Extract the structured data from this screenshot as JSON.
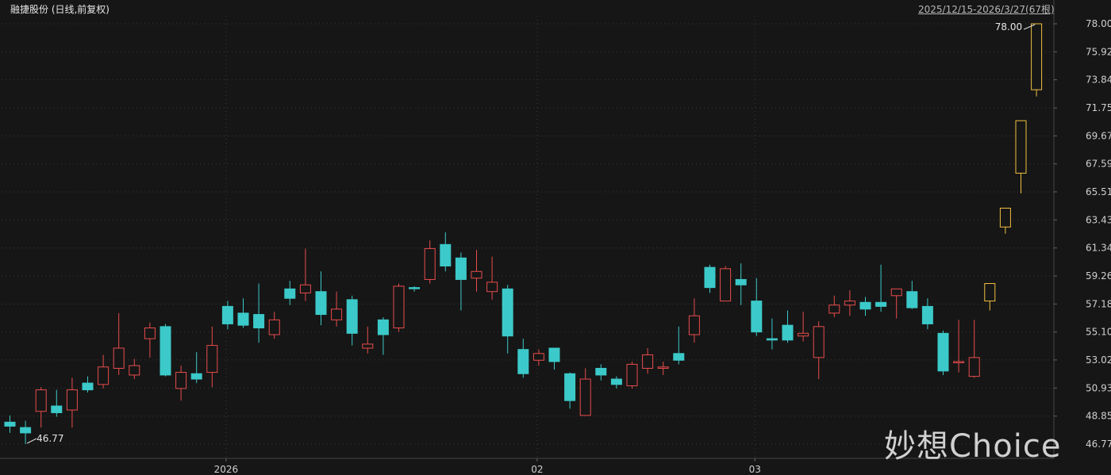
{
  "header": {
    "title": "融捷股份 (日线,前复权)",
    "range": "2025/12/15-2026/3/27(67根)"
  },
  "watermark": "妙想Choice",
  "colors": {
    "up": "#e84c4c",
    "down": "#3cc9c9",
    "highlight": "#f0c040",
    "grid": "#3a3a3a",
    "text": "#cfcfcf"
  },
  "chart_data": {
    "type": "candlestick",
    "ylim": [
      46.77,
      78.0
    ],
    "y_ticks": [
      "78.00",
      "75.92",
      "73.84",
      "71.75",
      "69.67",
      "67.59",
      "65.51",
      "63.43",
      "61.34",
      "59.26",
      "57.18",
      "55.10",
      "53.02",
      "50.93",
      "48.85",
      "46.77"
    ],
    "x_labels": [
      {
        "label": "2026",
        "index": 14
      },
      {
        "label": "02",
        "index": 34
      },
      {
        "label": "03",
        "index": 48
      }
    ],
    "annotations": [
      {
        "text": "46.77",
        "index": 1,
        "value": 46.77
      },
      {
        "text": "78.00",
        "index": 66,
        "value": 78.0
      }
    ],
    "candles": [
      {
        "o": 48.4,
        "h": 48.9,
        "l": 47.6,
        "c": 48.1,
        "s": "down"
      },
      {
        "o": 48.0,
        "h": 48.5,
        "l": 46.77,
        "c": 47.6,
        "s": "down"
      },
      {
        "o": 49.2,
        "h": 51.0,
        "l": 48.0,
        "c": 50.8,
        "s": "up"
      },
      {
        "o": 49.6,
        "h": 50.8,
        "l": 48.8,
        "c": 49.1,
        "s": "down"
      },
      {
        "o": 49.3,
        "h": 51.7,
        "l": 48.0,
        "c": 50.8,
        "s": "up"
      },
      {
        "o": 51.3,
        "h": 51.8,
        "l": 50.6,
        "c": 50.8,
        "s": "down"
      },
      {
        "o": 51.2,
        "h": 53.4,
        "l": 50.9,
        "c": 52.5,
        "s": "up"
      },
      {
        "o": 52.4,
        "h": 56.5,
        "l": 51.9,
        "c": 53.9,
        "s": "up"
      },
      {
        "o": 52.6,
        "h": 53.1,
        "l": 51.6,
        "c": 51.9,
        "s": "up"
      },
      {
        "o": 54.6,
        "h": 55.8,
        "l": 53.2,
        "c": 55.4,
        "s": "up"
      },
      {
        "o": 55.5,
        "h": 55.7,
        "l": 51.8,
        "c": 51.9,
        "s": "down"
      },
      {
        "o": 50.9,
        "h": 52.6,
        "l": 50.0,
        "c": 52.1,
        "s": "up"
      },
      {
        "o": 52.0,
        "h": 53.6,
        "l": 51.3,
        "c": 51.6,
        "s": "down"
      },
      {
        "o": 52.1,
        "h": 55.5,
        "l": 51.0,
        "c": 54.1,
        "s": "up"
      },
      {
        "o": 57.0,
        "h": 57.4,
        "l": 55.3,
        "c": 55.7,
        "s": "down"
      },
      {
        "o": 56.5,
        "h": 57.6,
        "l": 55.4,
        "c": 55.6,
        "s": "down"
      },
      {
        "o": 56.4,
        "h": 58.7,
        "l": 54.3,
        "c": 55.4,
        "s": "down"
      },
      {
        "o": 54.9,
        "h": 56.6,
        "l": 54.6,
        "c": 56.0,
        "s": "up"
      },
      {
        "o": 58.3,
        "h": 58.9,
        "l": 57.1,
        "c": 57.6,
        "s": "down"
      },
      {
        "o": 58.0,
        "h": 61.3,
        "l": 57.4,
        "c": 58.6,
        "s": "up"
      },
      {
        "o": 58.1,
        "h": 59.6,
        "l": 55.6,
        "c": 56.4,
        "s": "down"
      },
      {
        "o": 56.0,
        "h": 58.1,
        "l": 55.5,
        "c": 56.8,
        "s": "up"
      },
      {
        "o": 57.5,
        "h": 57.8,
        "l": 54.1,
        "c": 55.0,
        "s": "down"
      },
      {
        "o": 53.9,
        "h": 55.5,
        "l": 53.5,
        "c": 54.2,
        "s": "up"
      },
      {
        "o": 56.0,
        "h": 56.2,
        "l": 53.4,
        "c": 54.9,
        "s": "down"
      },
      {
        "o": 55.4,
        "h": 58.7,
        "l": 55.1,
        "c": 58.5,
        "s": "up"
      },
      {
        "o": 58.4,
        "h": 58.5,
        "l": 58.1,
        "c": 58.4,
        "s": "down"
      },
      {
        "o": 59.0,
        "h": 61.9,
        "l": 58.7,
        "c": 61.3,
        "s": "up"
      },
      {
        "o": 61.6,
        "h": 62.5,
        "l": 59.6,
        "c": 60.0,
        "s": "down"
      },
      {
        "o": 60.6,
        "h": 61.0,
        "l": 56.7,
        "c": 59.0,
        "s": "down"
      },
      {
        "o": 59.1,
        "h": 61.2,
        "l": 58.1,
        "c": 59.6,
        "s": "up"
      },
      {
        "o": 58.1,
        "h": 60.7,
        "l": 57.5,
        "c": 58.8,
        "s": "up"
      },
      {
        "o": 58.3,
        "h": 58.6,
        "l": 53.5,
        "c": 54.8,
        "s": "down"
      },
      {
        "o": 53.8,
        "h": 54.6,
        "l": 51.7,
        "c": 52.0,
        "s": "down"
      },
      {
        "o": 53.0,
        "h": 53.8,
        "l": 52.6,
        "c": 53.5,
        "s": "up"
      },
      {
        "o": 53.9,
        "h": 53.9,
        "l": 52.3,
        "c": 52.9,
        "s": "down"
      },
      {
        "o": 52.0,
        "h": 52.1,
        "l": 49.4,
        "c": 50.0,
        "s": "down"
      },
      {
        "o": 48.9,
        "h": 52.4,
        "l": 48.9,
        "c": 51.6,
        "s": "up"
      },
      {
        "o": 52.4,
        "h": 52.7,
        "l": 51.5,
        "c": 51.9,
        "s": "down"
      },
      {
        "o": 51.6,
        "h": 51.8,
        "l": 50.9,
        "c": 51.2,
        "s": "down"
      },
      {
        "o": 51.1,
        "h": 52.9,
        "l": 50.9,
        "c": 52.7,
        "s": "up"
      },
      {
        "o": 52.4,
        "h": 53.9,
        "l": 52.0,
        "c": 53.4,
        "s": "up"
      },
      {
        "o": 52.4,
        "h": 52.9,
        "l": 51.9,
        "c": 52.5,
        "s": "up"
      },
      {
        "o": 53.0,
        "h": 55.5,
        "l": 52.7,
        "c": 53.5,
        "s": "down"
      },
      {
        "o": 54.9,
        "h": 57.6,
        "l": 54.3,
        "c": 56.3,
        "s": "up"
      },
      {
        "o": 59.9,
        "h": 60.1,
        "l": 58.0,
        "c": 58.4,
        "s": "down"
      },
      {
        "o": 57.4,
        "h": 60.0,
        "l": 57.4,
        "c": 59.8,
        "s": "up"
      },
      {
        "o": 59.0,
        "h": 60.2,
        "l": 57.1,
        "c": 58.6,
        "s": "down"
      },
      {
        "o": 57.4,
        "h": 59.1,
        "l": 54.8,
        "c": 55.1,
        "s": "down"
      },
      {
        "o": 54.5,
        "h": 56.1,
        "l": 53.8,
        "c": 54.6,
        "s": "down"
      },
      {
        "o": 55.6,
        "h": 56.7,
        "l": 54.3,
        "c": 54.5,
        "s": "down"
      },
      {
        "o": 54.8,
        "h": 56.6,
        "l": 54.4,
        "c": 55.0,
        "s": "up"
      },
      {
        "o": 53.2,
        "h": 55.9,
        "l": 51.6,
        "c": 55.5,
        "s": "up"
      },
      {
        "o": 56.5,
        "h": 57.8,
        "l": 56.2,
        "c": 57.1,
        "s": "up"
      },
      {
        "o": 57.1,
        "h": 58.2,
        "l": 56.3,
        "c": 57.4,
        "s": "up"
      },
      {
        "o": 57.3,
        "h": 57.7,
        "l": 56.3,
        "c": 56.8,
        "s": "down"
      },
      {
        "o": 57.0,
        "h": 60.1,
        "l": 56.6,
        "c": 57.3,
        "s": "down"
      },
      {
        "o": 57.8,
        "h": 58.3,
        "l": 56.1,
        "c": 58.3,
        "s": "up"
      },
      {
        "o": 58.1,
        "h": 58.9,
        "l": 56.8,
        "c": 56.9,
        "s": "down"
      },
      {
        "o": 57.0,
        "h": 57.6,
        "l": 55.3,
        "c": 55.7,
        "s": "down"
      },
      {
        "o": 55.0,
        "h": 55.2,
        "l": 51.9,
        "c": 52.2,
        "s": "down"
      },
      {
        "o": 52.9,
        "h": 56.0,
        "l": 52.1,
        "c": 52.9,
        "s": "up"
      },
      {
        "o": 51.8,
        "h": 56.0,
        "l": 51.7,
        "c": 53.2,
        "s": "up"
      },
      {
        "o": 57.4,
        "h": 58.7,
        "l": 56.7,
        "c": 58.7,
        "s": "highlight"
      },
      {
        "o": 62.9,
        "h": 64.3,
        "l": 62.4,
        "c": 64.3,
        "s": "highlight"
      },
      {
        "o": 66.9,
        "h": 70.8,
        "l": 65.4,
        "c": 70.8,
        "s": "highlight"
      },
      {
        "o": 73.1,
        "h": 78.0,
        "l": 72.6,
        "c": 78.0,
        "s": "highlight"
      }
    ]
  }
}
